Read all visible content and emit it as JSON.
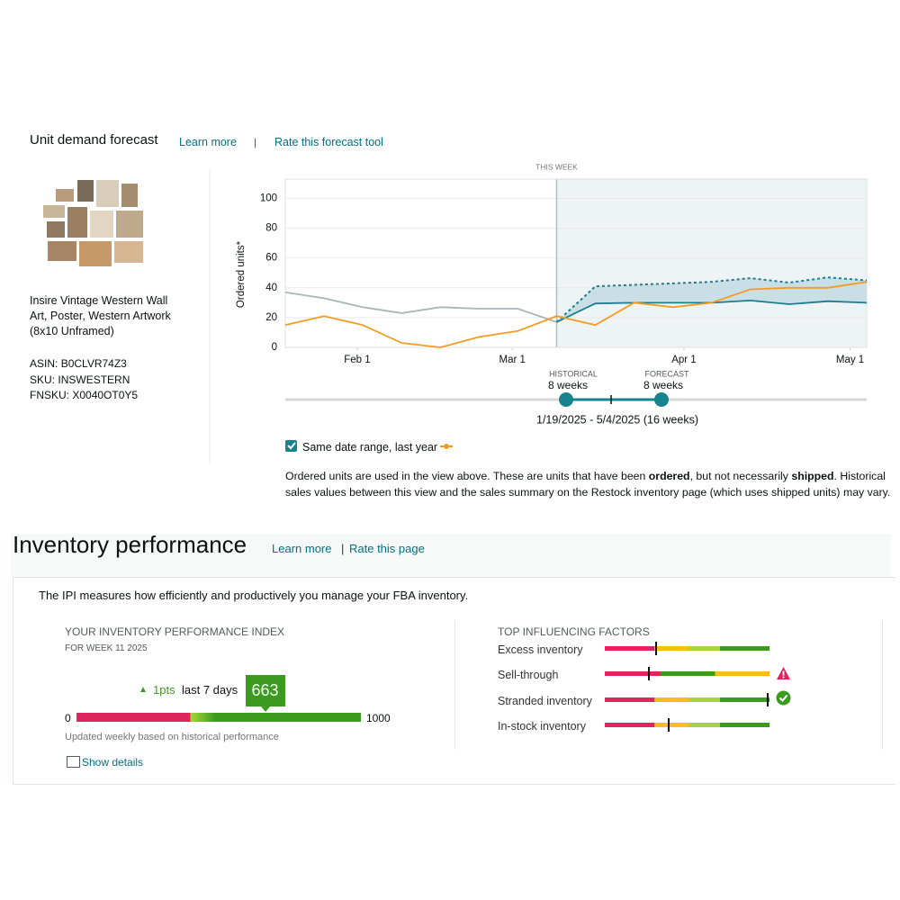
{
  "forecast": {
    "title": "Unit demand forecast",
    "learn_more": "Learn more",
    "rate": "Rate this forecast tool",
    "product": {
      "name": "Insire Vintage Western Wall Art, Poster, Western Artwork (8x10 Unframed)",
      "asin_label": "ASIN:",
      "asin": "B0CLVR74Z3",
      "sku_label": "SKU:",
      "sku": "INSWESTERN",
      "fnsku_label": "FNSKU:",
      "fnsku": "X0040OT0Y5"
    },
    "chart_data": {
      "type": "line",
      "y_label": "Ordered units*",
      "x": [
        "2025-01-19",
        "2025-01-26",
        "2025-02-02",
        "2025-02-09",
        "2025-02-16",
        "2025-02-23",
        "2025-03-02",
        "2025-03-09",
        "2025-03-16",
        "2025-03-23",
        "2025-03-30",
        "2025-04-06",
        "2025-04-13",
        "2025-04-20",
        "2025-04-27",
        "2025-05-04"
      ],
      "xlim": [
        "2025-01-19",
        "2025-05-04"
      ],
      "xticks": [
        {
          "value": "2025-02-01",
          "label": "Feb 1"
        },
        {
          "value": "2025-03-01",
          "label": "Mar 1"
        },
        {
          "value": "2025-04-01",
          "label": "Apr 1"
        },
        {
          "value": "2025-05-01",
          "label": "May 1"
        }
      ],
      "ylim": [
        0,
        113
      ],
      "yticks": [
        0,
        20,
        40,
        60,
        80,
        100
      ],
      "grid": true,
      "this_week": {
        "x": "2025-03-09",
        "label": "THIS WEEK"
      },
      "forecast_shade": "#eef3f5",
      "band": {
        "lower": 1,
        "upper": 2,
        "color": "#bcd8df"
      },
      "series": [
        {
          "color": "#aab5b7",
          "values": [
            37,
            33,
            27,
            23,
            27,
            26,
            26,
            17,
            null,
            null,
            null,
            null,
            null,
            null,
            null,
            null
          ]
        },
        {
          "color": "#1a7f8e",
          "values": [
            null,
            null,
            null,
            null,
            null,
            null,
            null,
            17,
            29.5,
            30,
            30,
            30,
            31.5,
            29,
            31,
            30
          ]
        },
        {
          "color": "#1a7f8e",
          "dashed": true,
          "values": [
            null,
            null,
            null,
            null,
            null,
            null,
            null,
            17,
            41,
            42,
            43,
            44,
            46.5,
            43.5,
            47,
            45
          ]
        },
        {
          "name": "Same date range, last year",
          "color": "#f39c22",
          "values": [
            15,
            21,
            15,
            3,
            0,
            7,
            11,
            21,
            15,
            30,
            27,
            30,
            39,
            40,
            40,
            44
          ]
        }
      ]
    },
    "range": {
      "historical_label": "HISTORICAL",
      "historical": "8 weeks",
      "forecast_label": "FORECAST",
      "forecast": "8 weeks",
      "dates": "1/19/2025 - 5/4/2025 (16 weeks)"
    },
    "note": [
      "Ordered units are used in the view above. These are units that have been ",
      "ordered",
      ", but not necessarily ",
      "shipped",
      ". Historical sales values between this view and the sales summary on the Restock inventory page (which uses shipped units) may vary."
    ]
  },
  "ipi": {
    "title": "Inventory performance",
    "learn_more": "Learn more",
    "rate": "Rate this page",
    "description": "The IPI measures how efficiently and productively you manage your FBA inventory.",
    "heading": "YOUR INVENTORY PERFORMANCE INDEX",
    "week": "FOR WEEK 11 2025",
    "change": "1pts",
    "period": "last 7 days",
    "score": 663,
    "min": 0,
    "max": 1000,
    "updated": "Updated weekly based on historical performance",
    "show_details": "Show details",
    "factors_heading": "TOP INFLUENCING FACTORS",
    "factors": [
      {
        "name": "Excess inventory",
        "marker": 0.31
      },
      {
        "name": "Sell-through",
        "marker": 0.27
      },
      {
        "name": "Stranded inventory",
        "marker": 0.99
      },
      {
        "name": "In-stock inventory",
        "marker": 0.39
      }
    ]
  }
}
